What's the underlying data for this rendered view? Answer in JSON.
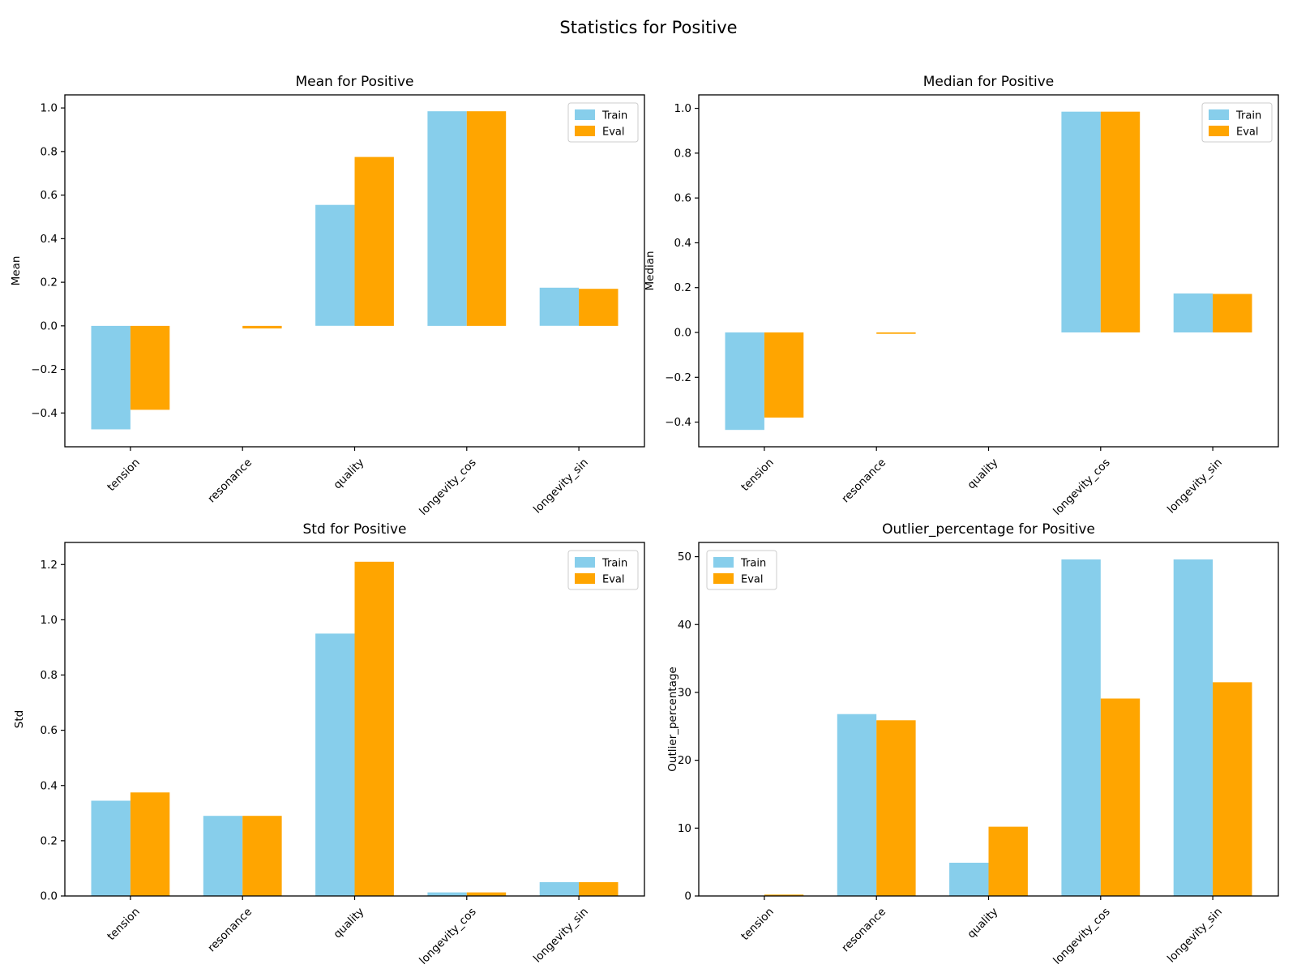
{
  "figure": {
    "suptitle": "Statistics for Positive",
    "background": "#ffffff"
  },
  "colors": {
    "train": "#87CEEB",
    "eval": "#FFA500",
    "text": "#000000",
    "spine": "#000000",
    "legend_border": "#cccccc",
    "legend_fill": "#ffffff"
  },
  "legend": {
    "train_label": "Train",
    "eval_label": "Eval"
  },
  "chart_data": [
    {
      "type": "bar",
      "id": "mean",
      "title": "Mean for Positive",
      "xlabel": "",
      "ylabel": "Mean",
      "categories": [
        "tension",
        "resonance",
        "quality",
        "longevity_cos",
        "longevity_sin"
      ],
      "series": [
        {
          "name": "Train",
          "color": "#87CEEB",
          "values": [
            -0.475,
            0.0,
            0.555,
            0.985,
            0.175
          ]
        },
        {
          "name": "Eval",
          "color": "#FFA500",
          "values": [
            -0.385,
            -0.012,
            0.775,
            0.985,
            0.17
          ]
        }
      ],
      "ylim": [
        -0.555,
        1.06
      ],
      "yticks": [
        -0.4,
        -0.2,
        0.0,
        0.2,
        0.4,
        0.6,
        0.8,
        1.0
      ],
      "ytick_labels": [
        "−0.4",
        "−0.2",
        "0.0",
        "0.2",
        "0.4",
        "0.6",
        "0.8",
        "1.0"
      ],
      "legend_position": "top-right",
      "grid": false
    },
    {
      "type": "bar",
      "id": "median",
      "title": "Median for Positive",
      "xlabel": "",
      "ylabel": "Median",
      "categories": [
        "tension",
        "resonance",
        "quality",
        "longevity_cos",
        "longevity_sin"
      ],
      "series": [
        {
          "name": "Train",
          "color": "#87CEEB",
          "values": [
            -0.435,
            0.0,
            0.0,
            0.985,
            0.174
          ]
        },
        {
          "name": "Eval",
          "color": "#FFA500",
          "values": [
            -0.38,
            -0.006,
            0.0,
            0.985,
            0.172
          ]
        }
      ],
      "ylim": [
        -0.51,
        1.06
      ],
      "yticks": [
        -0.4,
        -0.2,
        0.0,
        0.2,
        0.4,
        0.6,
        0.8,
        1.0
      ],
      "ytick_labels": [
        "−0.4",
        "−0.2",
        "0.0",
        "0.2",
        "0.4",
        "0.6",
        "0.8",
        "1.0"
      ],
      "legend_position": "top-right",
      "grid": false
    },
    {
      "type": "bar",
      "id": "std",
      "title": "Std for Positive",
      "xlabel": "",
      "ylabel": "Std",
      "categories": [
        "tension",
        "resonance",
        "quality",
        "longevity_cos",
        "longevity_sin"
      ],
      "series": [
        {
          "name": "Train",
          "color": "#87CEEB",
          "values": [
            0.345,
            0.29,
            0.95,
            0.013,
            0.05
          ]
        },
        {
          "name": "Eval",
          "color": "#FFA500",
          "values": [
            0.375,
            0.29,
            1.21,
            0.013,
            0.05
          ]
        }
      ],
      "ylim": [
        0,
        1.28
      ],
      "yticks": [
        0.0,
        0.2,
        0.4,
        0.6,
        0.8,
        1.0,
        1.2
      ],
      "ytick_labels": [
        "0.0",
        "0.2",
        "0.4",
        "0.6",
        "0.8",
        "1.0",
        "1.2"
      ],
      "legend_position": "top-right",
      "grid": false
    },
    {
      "type": "bar",
      "id": "outlier_percentage",
      "title": "Outlier_percentage for Positive",
      "xlabel": "",
      "ylabel": "Outlier_percentage",
      "categories": [
        "tension",
        "resonance",
        "quality",
        "longevity_cos",
        "longevity_sin"
      ],
      "series": [
        {
          "name": "Train",
          "color": "#87CEEB",
          "values": [
            0.0,
            26.8,
            4.9,
            49.6,
            49.6
          ]
        },
        {
          "name": "Eval",
          "color": "#FFA500",
          "values": [
            0.2,
            25.9,
            10.2,
            29.1,
            31.5
          ]
        }
      ],
      "ylim": [
        0,
        52.1
      ],
      "yticks": [
        0,
        10,
        20,
        30,
        40,
        50
      ],
      "ytick_labels": [
        "0",
        "10",
        "20",
        "30",
        "40",
        "50"
      ],
      "legend_position": "top-left",
      "grid": false
    }
  ]
}
